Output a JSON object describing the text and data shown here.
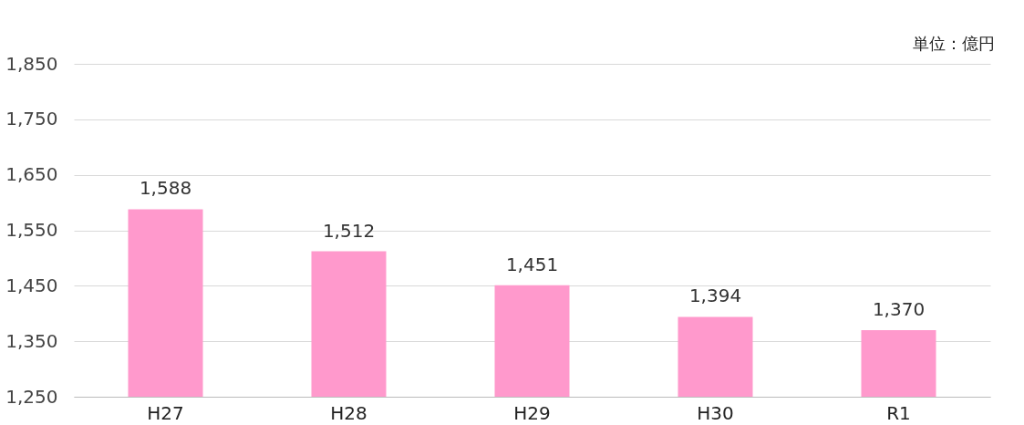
{
  "chart_data": {
    "type": "bar",
    "categories": [
      "H27",
      "H28",
      "H29",
      "H30",
      "R1"
    ],
    "series": [
      {
        "color": "#ff99cc",
        "values": [
          1588,
          1512,
          1451,
          1394,
          1370
        ]
      }
    ],
    "value_labels": [
      "1,588",
      "1,512",
      "1,451",
      "1,394",
      "1,370"
    ],
    "ylim": [
      1250,
      1850
    ],
    "yticks": [
      {
        "value": 1250,
        "label": "1,250"
      },
      {
        "value": 1350,
        "label": "1,350"
      },
      {
        "value": 1450,
        "label": "1,450"
      },
      {
        "value": 1550,
        "label": "1,550"
      },
      {
        "value": 1650,
        "label": "1,650"
      },
      {
        "value": 1750,
        "label": "1,750"
      },
      {
        "value": 1850,
        "label": "1,850"
      }
    ],
    "grid": "y",
    "annotations": [
      "単位：億円"
    ]
  }
}
